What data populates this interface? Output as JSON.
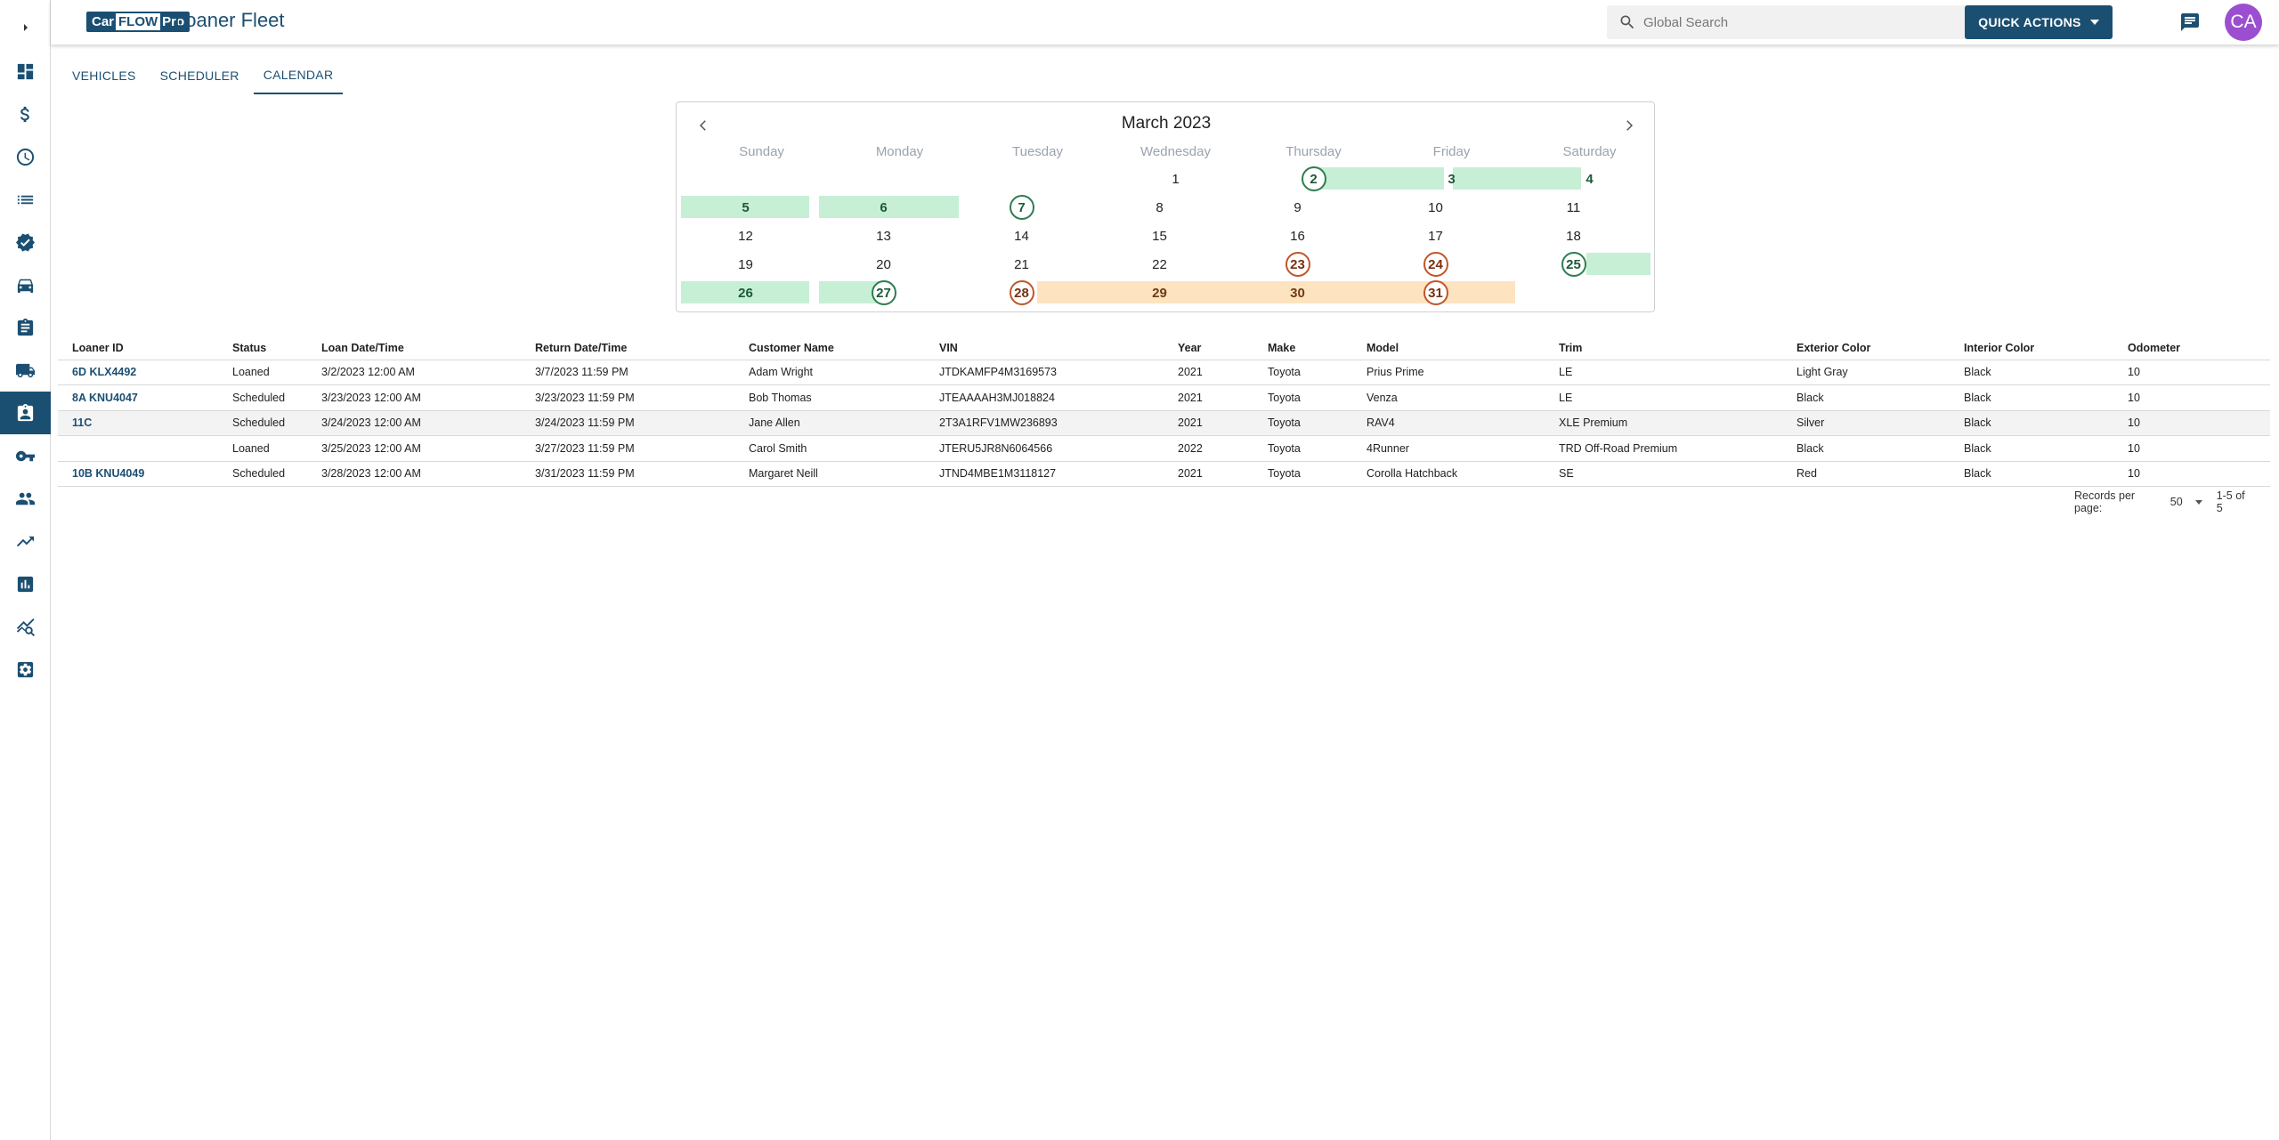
{
  "header": {
    "logo": {
      "part1": "Car",
      "part2": "FLOW",
      "part3": "Pro"
    },
    "title": "Loaner Fleet",
    "search_placeholder": "Global Search",
    "quick_actions_label": "QUICK ACTIONS",
    "avatar_initials": "CA"
  },
  "sidebar": {
    "items": [
      {
        "name": "dashboard-icon"
      },
      {
        "name": "dollar-icon"
      },
      {
        "name": "clock-icon"
      },
      {
        "name": "list-icon"
      },
      {
        "name": "verified-badge-icon"
      },
      {
        "name": "car-icon"
      },
      {
        "name": "clipboard-icon"
      },
      {
        "name": "truck-icon"
      },
      {
        "name": "assignment-ind-icon",
        "active": true
      },
      {
        "name": "key-icon"
      },
      {
        "name": "people-icon"
      },
      {
        "name": "trending-up-icon"
      },
      {
        "name": "bar-chart-icon"
      },
      {
        "name": "query-stats-icon"
      },
      {
        "name": "settings-box-icon"
      }
    ]
  },
  "tabs": [
    {
      "label": "VEHICLES"
    },
    {
      "label": "SCHEDULER"
    },
    {
      "label": "CALENDAR",
      "active": true
    }
  ],
  "calendar": {
    "title": "March 2023",
    "weekdays": [
      "Sunday",
      "Monday",
      "Tuesday",
      "Wednesday",
      "Thursday",
      "Friday",
      "Saturday"
    ],
    "weeks": [
      [
        "",
        "",
        "",
        "1",
        "2",
        "3",
        "4"
      ],
      [
        "5",
        "6",
        "7",
        "8",
        "9",
        "10",
        "11"
      ],
      [
        "12",
        "13",
        "14",
        "15",
        "16",
        "17",
        "18"
      ],
      [
        "19",
        "20",
        "21",
        "22",
        "23",
        "24",
        "25"
      ],
      [
        "26",
        "27",
        "28",
        "29",
        "30",
        "31",
        ""
      ]
    ]
  },
  "table": {
    "columns": [
      "Loaner ID",
      "Status",
      "Loan Date/Time",
      "Return Date/Time",
      "Customer Name",
      "VIN",
      "Year",
      "Make",
      "Model",
      "Trim",
      "Exterior Color",
      "Interior Color",
      "Odometer"
    ],
    "rows": [
      [
        "6D KLX4492",
        "Loaned",
        "3/2/2023 12:00 AM",
        "3/7/2023 11:59 PM",
        "Adam Wright",
        "JTDKAMFP4M3169573",
        "2021",
        "Toyota",
        "Prius Prime",
        "LE",
        "Light Gray",
        "Black",
        "10"
      ],
      [
        "8A KNU4047",
        "Scheduled",
        "3/23/2023 12:00 AM",
        "3/23/2023 11:59 PM",
        "Bob Thomas",
        "JTEAAAAH3MJ018824",
        "2021",
        "Toyota",
        "Venza",
        "LE",
        "Black",
        "Black",
        "10"
      ],
      [
        "11C",
        "Scheduled",
        "3/24/2023 12:00 AM",
        "3/24/2023 11:59 PM",
        "Jane Allen",
        "2T3A1RFV1MW236893",
        "2021",
        "Toyota",
        "RAV4",
        "XLE Premium",
        "Silver",
        "Black",
        "10"
      ],
      [
        "",
        "Loaned",
        "3/25/2023 12:00 AM",
        "3/27/2023 11:59 PM",
        "Carol Smith",
        "JTERU5JR8N6064566",
        "2022",
        "Toyota",
        "4Runner",
        "TRD Off-Road Premium",
        "Black",
        "Black",
        "10"
      ],
      [
        "10B KNU4049",
        "Scheduled",
        "3/28/2023 12:00 AM",
        "3/31/2023 11:59 PM",
        "Margaret Neill",
        "JTND4MBE1M3118127",
        "2021",
        "Toyota",
        "Corolla Hatchback",
        "SE",
        "Red",
        "Black",
        "10"
      ]
    ]
  },
  "pagination": {
    "records_per_page_label": "Records per page:",
    "records_per_page_value": "50",
    "range_text": "1-5 of 5"
  },
  "colors": {
    "brand": "#1b4f72",
    "green_fill": "#c6efd6",
    "orange_fill": "#fde3bf",
    "green_ring": "#2e7d4f",
    "orange_ring": "#c0562a",
    "avatar": "#9b4fd0"
  }
}
